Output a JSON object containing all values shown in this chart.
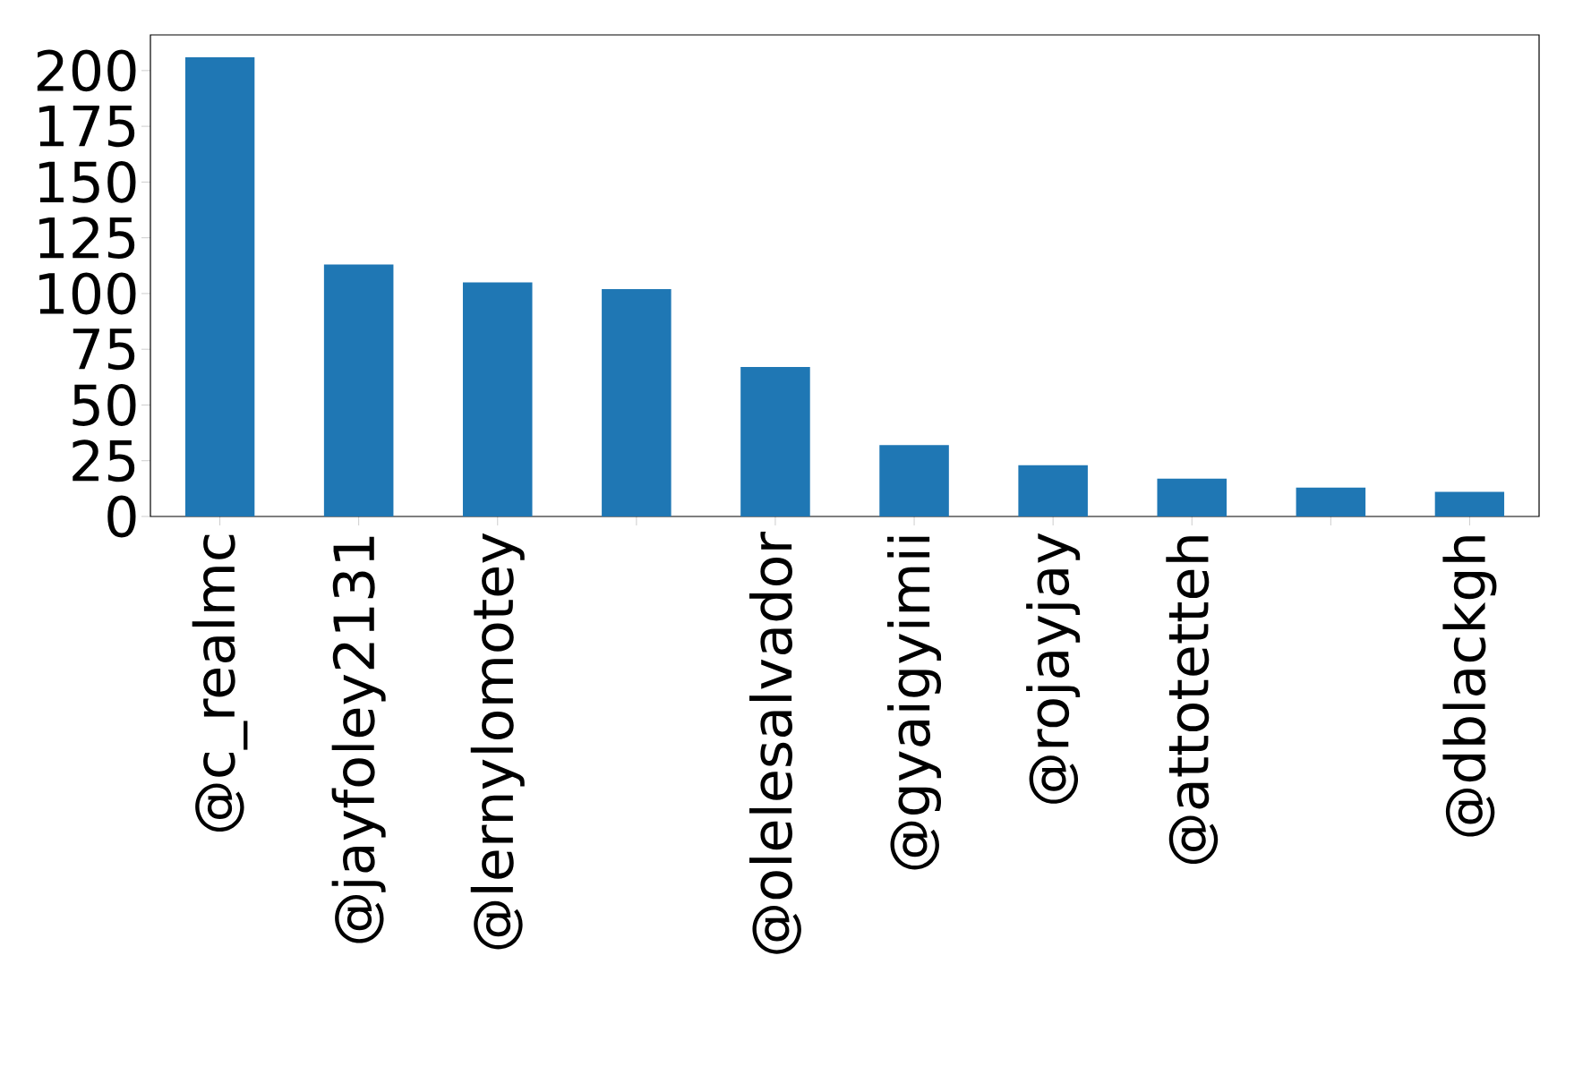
{
  "chart_data": {
    "type": "bar",
    "categories": [
      "@c_realmc",
      "@jayfoley2131",
      "@lernylomotey",
      null,
      "@olelesalvador",
      "@gyaigyimii",
      "@rojayjay",
      "@attotetteh",
      null,
      "@dblackgh"
    ],
    "values": [
      206,
      113,
      105,
      102,
      67,
      32,
      23,
      17,
      13,
      11
    ],
    "color": "#1f77b4",
    "ylim": [
      0,
      216
    ],
    "yticks": [
      0,
      25,
      50,
      75,
      100,
      125,
      150,
      175,
      200
    ]
  }
}
